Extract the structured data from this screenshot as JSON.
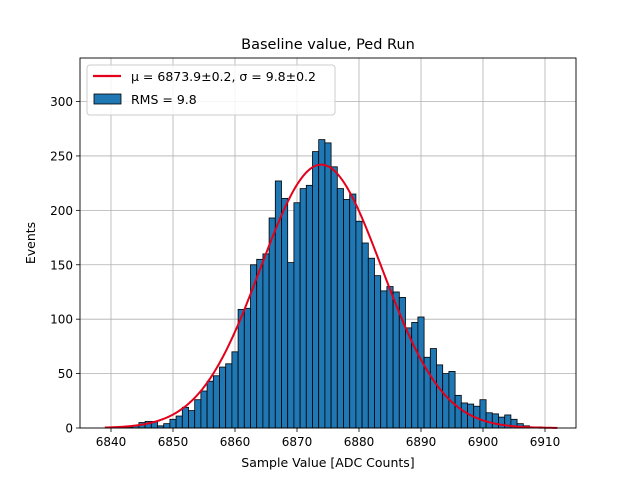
{
  "chart_data": {
    "type": "bar",
    "title": "Baseline value, Ped Run",
    "xlabel": "Sample Value [ADC Counts]",
    "ylabel": "Events",
    "xlim": [
      6835,
      6915
    ],
    "ylim": [
      0,
      340
    ],
    "xticks": [
      6840,
      6850,
      6860,
      6870,
      6880,
      6890,
      6900,
      6910
    ],
    "yticks": [
      0,
      50,
      100,
      150,
      200,
      250,
      300
    ],
    "grid": true,
    "legend_position": "top-left",
    "bin_width": 1,
    "bins": {
      "x": [
        6840,
        6841,
        6842,
        6843,
        6844,
        6845,
        6846,
        6847,
        6848,
        6849,
        6850,
        6851,
        6852,
        6853,
        6854,
        6855,
        6856,
        6857,
        6858,
        6859,
        6860,
        6861,
        6862,
        6863,
        6864,
        6865,
        6866,
        6867,
        6868,
        6869,
        6870,
        6871,
        6872,
        6873,
        6874,
        6875,
        6876,
        6877,
        6878,
        6879,
        6880,
        6881,
        6882,
        6883,
        6884,
        6885,
        6886,
        6887,
        6888,
        6889,
        6890,
        6891,
        6892,
        6893,
        6894,
        6895,
        6896,
        6897,
        6898,
        6899,
        6900,
        6901,
        6902,
        6903,
        6904,
        6905,
        6906,
        6907,
        6908,
        6909,
        6910
      ],
      "values": [
        0,
        1,
        1,
        1,
        2,
        5,
        6,
        6,
        2,
        4,
        8,
        11,
        19,
        16,
        26,
        34,
        43,
        48,
        56,
        59,
        70,
        109,
        110,
        150,
        155,
        160,
        193,
        227,
        211,
        152,
        207,
        220,
        223,
        254,
        265,
        262,
        240,
        220,
        210,
        215,
        190,
        170,
        156,
        140,
        126,
        130,
        125,
        120,
        92,
        97,
        102,
        65,
        73,
        58,
        50,
        52,
        30,
        23,
        22,
        20,
        26,
        14,
        13,
        10,
        12,
        8,
        4,
        2,
        1,
        1,
        0
      ]
    },
    "series": [
      {
        "name": "μ = 6873.9±0.2, σ = 9.8±0.2",
        "type": "line",
        "color": "#e3001b",
        "mu": 6873.9,
        "sigma": 9.8,
        "amplitude": 242,
        "x_range": [
          6839,
          6912
        ]
      },
      {
        "name": "RMS = 9.8",
        "type": "histogram",
        "color": "#1f77b4"
      }
    ]
  }
}
